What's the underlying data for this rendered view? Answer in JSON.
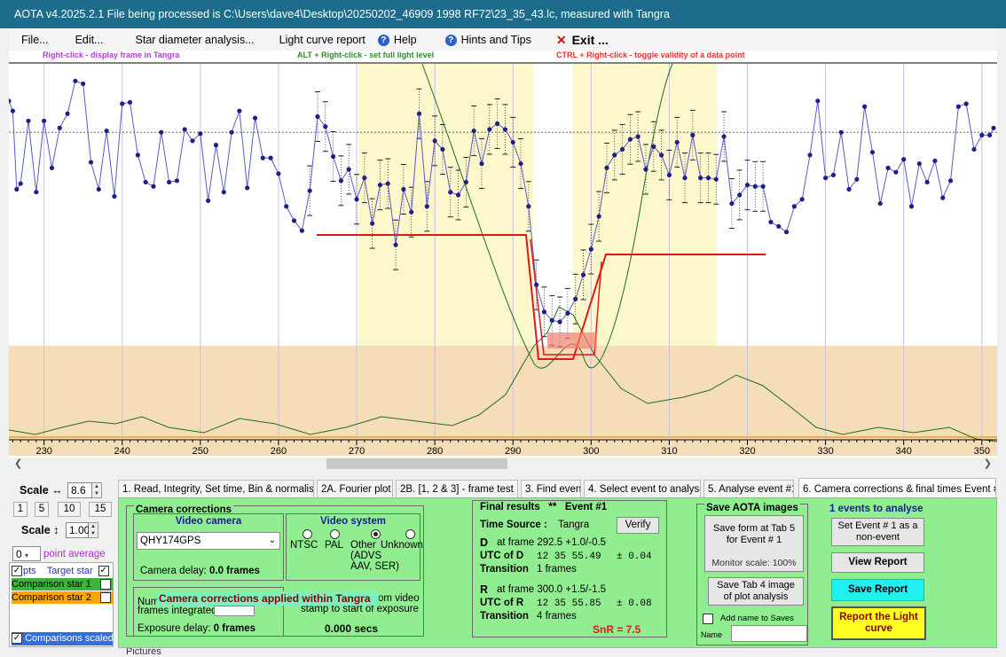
{
  "window": {
    "title": "AOTA v4.2025.2.1    File being processed is C:\\Users\\dave4\\Desktop\\20250202_46909 1998 RF72\\23_35_43.lc, measured with Tangra"
  },
  "menu": {
    "file": "File...",
    "edit": "Edit...",
    "star_diameter": "Star diameter analysis...",
    "light_curve_report": "Light curve report",
    "help": "Help",
    "hints": "Hints and Tips",
    "exit": "Exit ..."
  },
  "hints": {
    "right_click": "Right-click  -  display frame in Tangra",
    "alt_right_click": "ALT + Right-click  -  set full light level",
    "ctrl_right_click": "CTRL + Right-click  -  toggle validity of a data point"
  },
  "colors": {
    "title_bg": "#1e6c8c",
    "panel_green": "#90ee90",
    "plot_yellow": "#fdf8cc",
    "plot_tan": "#f5ddb8",
    "data_blue": "#2b2b9c",
    "model_red": "#e01818",
    "curve_green": "#1f6f1f"
  },
  "chart_data": {
    "type": "line",
    "x_ticks": [
      230,
      240,
      250,
      260,
      270,
      280,
      290,
      300,
      310,
      320,
      330,
      340,
      350
    ],
    "xlim": [
      225.5,
      351.5
    ],
    "ylim": [
      -50,
      210
    ],
    "series": [
      {
        "values": [
          [
            225.5,
            184
          ],
          [
            226,
            177
          ],
          [
            226.5,
            122
          ],
          [
            227,
            126
          ],
          [
            228,
            170
          ],
          [
            229,
            120
          ],
          [
            230,
            170
          ],
          [
            231,
            137
          ],
          [
            232,
            165
          ],
          [
            233,
            175
          ],
          [
            234,
            198
          ],
          [
            235,
            196
          ],
          [
            236,
            141
          ],
          [
            237,
            122
          ],
          [
            238,
            163
          ],
          [
            239,
            117
          ],
          [
            240,
            182
          ],
          [
            241,
            183
          ],
          [
            242,
            146
          ],
          [
            243,
            127
          ],
          [
            244,
            124
          ],
          [
            245,
            162
          ],
          [
            246,
            127
          ],
          [
            247,
            128
          ],
          [
            248,
            164
          ],
          [
            249,
            156
          ],
          [
            250,
            161
          ],
          [
            251,
            114
          ],
          [
            252,
            153
          ],
          [
            253,
            120
          ],
          [
            254,
            162
          ],
          [
            255,
            177
          ],
          [
            256,
            123
          ],
          [
            257,
            172
          ],
          [
            258,
            144
          ],
          [
            259,
            144
          ],
          [
            260,
            133
          ],
          [
            261,
            110
          ],
          [
            262,
            100
          ],
          [
            263,
            93
          ],
          [
            264,
            121
          ],
          [
            265,
            173
          ],
          [
            266,
            166
          ],
          [
            267,
            145
          ],
          [
            268,
            128
          ],
          [
            269,
            136
          ],
          [
            270,
            115
          ],
          [
            271,
            130
          ],
          [
            272,
            98
          ],
          [
            273,
            125
          ],
          [
            274,
            126
          ],
          [
            275,
            83
          ],
          [
            276,
            122
          ],
          [
            277,
            106
          ],
          [
            278,
            175
          ],
          [
            279,
            110
          ],
          [
            280,
            156
          ],
          [
            281,
            150
          ],
          [
            282,
            120
          ],
          [
            283,
            118
          ],
          [
            284,
            127
          ],
          [
            285,
            163
          ],
          [
            286,
            140
          ],
          [
            287,
            164
          ],
          [
            288,
            168
          ],
          [
            289,
            164
          ],
          [
            290,
            155
          ],
          [
            291,
            140
          ],
          [
            292,
            110
          ],
          [
            293,
            55
          ],
          [
            294,
            36
          ],
          [
            295,
            30
          ],
          [
            296,
            29
          ],
          [
            297,
            35
          ],
          [
            298,
            45
          ],
          [
            299,
            62
          ],
          [
            300,
            80
          ],
          [
            301,
            103
          ],
          [
            302,
            137
          ],
          [
            303,
            146
          ],
          [
            304,
            150
          ],
          [
            305,
            157
          ],
          [
            306,
            159
          ],
          [
            307,
            136
          ],
          [
            308,
            152
          ],
          [
            309,
            146
          ],
          [
            310,
            132
          ],
          [
            311,
            155
          ],
          [
            312,
            130
          ],
          [
            313,
            160
          ],
          [
            314,
            130
          ],
          [
            315,
            130
          ],
          [
            316,
            129
          ],
          [
            317,
            159
          ],
          [
            318,
            112
          ],
          [
            319,
            118
          ],
          [
            320,
            125
          ],
          [
            321,
            124
          ],
          [
            322,
            124
          ],
          [
            323,
            99
          ],
          [
            324,
            96
          ],
          [
            325,
            92
          ],
          [
            326,
            110
          ],
          [
            327,
            115
          ],
          [
            328,
            146
          ],
          [
            329,
            184
          ],
          [
            330,
            130
          ],
          [
            331,
            132
          ],
          [
            332,
            162
          ],
          [
            333,
            122
          ],
          [
            334,
            129
          ],
          [
            335,
            180
          ],
          [
            336,
            148
          ],
          [
            337,
            112
          ],
          [
            338,
            137
          ],
          [
            339,
            134
          ],
          [
            340,
            143
          ],
          [
            341,
            110
          ],
          [
            342,
            140
          ],
          [
            343,
            127
          ],
          [
            344,
            142
          ],
          [
            345,
            116
          ],
          [
            346,
            128
          ],
          [
            347,
            180
          ],
          [
            348,
            182
          ],
          [
            349,
            150
          ],
          [
            350,
            160
          ],
          [
            351,
            160
          ],
          [
            351.5,
            165
          ]
        ]
      }
    ],
    "full_level_ref": 162,
    "light_level_lines": [
      95,
      75,
      50
    ]
  },
  "left_panel": {
    "scale_h_label": "Scale ↔",
    "scale_h_value": "8.6",
    "scale_buttons": [
      "1",
      "5",
      "10",
      "15"
    ],
    "scale_v_label": "Scale ↕",
    "scale_v_value": "1.00",
    "avg_value": "0",
    "avg_label": "point average",
    "pts_label": "pts",
    "target_label": "Target star",
    "comp1_label": "Comparison star 1",
    "comp2_label": "Comparison star 2",
    "comparisons_scaled": "Comparisons scaled",
    "behind_label": "Pictures"
  },
  "tabs": [
    "1.  Read, Integrity, Set time, Bin & normalise",
    "2A. Fourier plot",
    "2B. [1, 2 & 3] - frame test",
    "3. Find events",
    "4. Select event to analyse",
    "5. Analyse event #1",
    "6. Camera corrections & final times Event #1"
  ],
  "camera": {
    "group_title": "Camera corrections",
    "video_camera_title": "Video camera",
    "camera_model": "QHY174GPS",
    "camera_delay_label": "Camera delay:",
    "camera_delay_value": "0.0 frames",
    "video_system_title": "Video system",
    "ntsc": "NTSC",
    "pal": "PAL",
    "other": "Other",
    "other_detail": "(ADVS",
    "other_detail2": "AAV, SER)",
    "unknown": "Unknown",
    "num_frames_label": "Num",
    "frames_integrated": "frames integrated",
    "overlay_text": "Camera corrections applied within Tangra",
    "from_video_1": "from video",
    "from_video_2": "stamp to start of exposure",
    "exposure_delay_label": "Exposure delay:",
    "exposure_delay_value": "0 frames",
    "secs_value": "0.000 secs"
  },
  "final": {
    "title": "Final results",
    "stars": "**",
    "event": "Event #1",
    "time_source_label": "Time Source :",
    "time_source_value": "Tangra",
    "verify": "Verify",
    "d_label": "D",
    "d_frame": "at frame 292.5  +1.0/-0.5",
    "utc_d_label": "UTC of D",
    "utc_d_value": "12  35  55.49",
    "utc_d_err": "±  0.04",
    "transition_label": "Transition",
    "transition_d": "1 frames",
    "r_label": "R",
    "r_frame": "at frame 300.0  +1.5/-1.5",
    "utc_r_label": "UTC of R",
    "utc_r_value": "12  35  55.85",
    "utc_r_err": "±  0.08",
    "transition_r": "4 frames",
    "snr": "SnR = 7.5"
  },
  "save": {
    "title": "Save AOTA images",
    "tab5": "Save form at Tab 5 for Event # 1",
    "monitor_scale": "Monitor scale: 100%",
    "tab4": "Save Tab 4 image of plot analysis",
    "add_name": "Add name to Saves",
    "name_label": "Name",
    "name_value": ""
  },
  "right": {
    "events_count": "1  events to analyse",
    "set_nonevent": "Set Event # 1 as a non-event",
    "view_report": "View Report",
    "save_report": "Save Report",
    "report_curve": "Report the Light curve"
  }
}
